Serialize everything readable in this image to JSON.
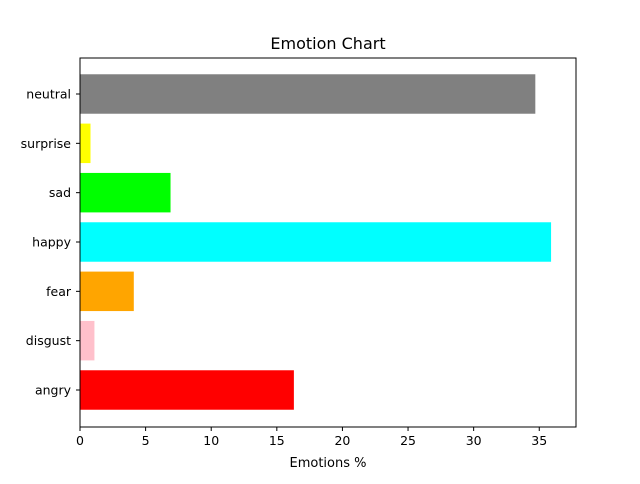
{
  "chart_data": {
    "type": "bar",
    "orientation": "horizontal",
    "title": "Emotion Chart",
    "xlabel": "Emotions %",
    "ylabel": "",
    "xlim": [
      0,
      37.8
    ],
    "xticks": [
      0,
      5,
      10,
      15,
      20,
      25,
      30,
      35
    ],
    "categories": [
      "angry",
      "disgust",
      "fear",
      "happy",
      "sad",
      "surprise",
      "neutral"
    ],
    "values": [
      16.3,
      1.1,
      4.1,
      35.9,
      6.9,
      0.8,
      34.7
    ],
    "colors": [
      "#ff0000",
      "#ffc0cb",
      "#ffa500",
      "#00ffff",
      "#00ff00",
      "#ffff00",
      "#808080"
    ],
    "grid": false,
    "legend": "none"
  }
}
